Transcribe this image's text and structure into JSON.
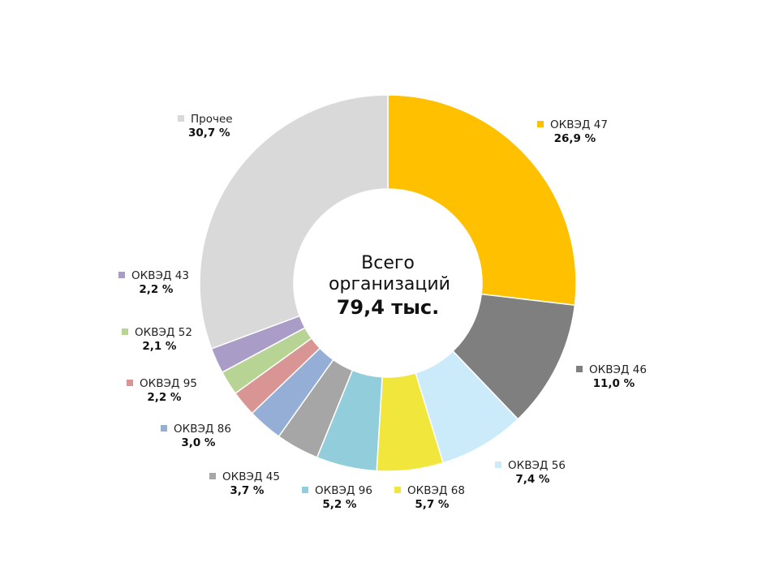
{
  "chart_data": {
    "type": "pie",
    "donut": true,
    "center": {
      "line1": "Всего",
      "line2": "организаций",
      "value": "79,4 тыс."
    },
    "slices": [
      {
        "label": "ОКВЭД 47",
        "value": 26.9,
        "value_label": "26,9 %",
        "color": "#FFC000"
      },
      {
        "label": "ОКВЭД 46",
        "value": 11.0,
        "value_label": "11,0 %",
        "color": "#7F7F7F"
      },
      {
        "label": "ОКВЭД 56",
        "value": 7.4,
        "value_label": "7,4 %",
        "color": "#CCEBFA"
      },
      {
        "label": "ОКВЭД 68",
        "value": 5.7,
        "value_label": "5,7 %",
        "color": "#F0E63C"
      },
      {
        "label": "ОКВЭД 96",
        "value": 5.2,
        "value_label": "5,2 %",
        "color": "#92CDDC"
      },
      {
        "label": "ОКВЭД 45",
        "value": 3.7,
        "value_label": "3,7 %",
        "color": "#A6A6A6"
      },
      {
        "label": "ОКВЭД 86",
        "value": 3.0,
        "value_label": "3,0 %",
        "color": "#95AED6"
      },
      {
        "label": "ОКВЭД 95",
        "value": 2.2,
        "value_label": "2,2 %",
        "color": "#D99594"
      },
      {
        "label": "ОКВЭД 52",
        "value": 2.1,
        "value_label": "2,1 %",
        "color": "#B8D494"
      },
      {
        "label": "ОКВЭД 43",
        "value": 2.2,
        "value_label": "2,2 %",
        "color": "#A99CC6"
      },
      {
        "label": "Прочее",
        "value": 30.7,
        "value_label": "30,7 %",
        "color": "#D9D9D9"
      }
    ]
  }
}
